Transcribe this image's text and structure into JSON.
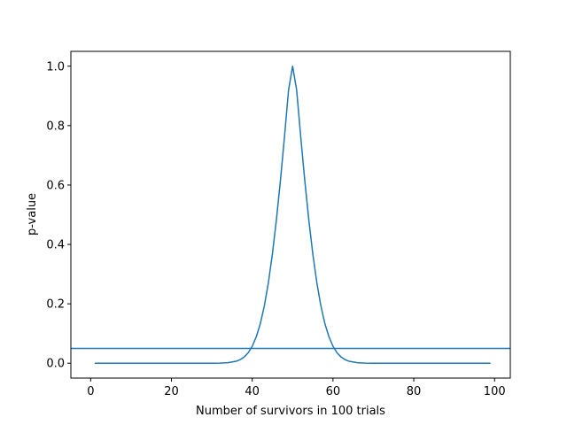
{
  "chart_data": {
    "type": "line",
    "title": "",
    "xlabel": "Number of survivors in 100 trials",
    "ylabel": "p-value",
    "xlim": [
      -4.9,
      103.9
    ],
    "ylim": [
      -0.05,
      1.05
    ],
    "xticks": [
      0,
      20,
      40,
      60,
      80,
      100
    ],
    "xtick_labels": [
      "0",
      "20",
      "40",
      "60",
      "80",
      "100"
    ],
    "yticks": [
      0.0,
      0.2,
      0.4,
      0.6,
      0.8,
      1.0
    ],
    "ytick_labels": [
      "0.0",
      "0.2",
      "0.4",
      "0.6",
      "0.8",
      "1.0"
    ],
    "grid": false,
    "series": [
      {
        "color": "#1f77b4",
        "x": [
          1,
          10,
          20,
          30,
          32,
          34,
          36,
          37,
          38,
          39,
          40,
          41,
          42,
          43,
          44,
          45,
          46,
          47,
          48,
          49,
          50,
          51,
          52,
          53,
          54,
          55,
          56,
          57,
          58,
          59,
          60,
          61,
          62,
          63,
          64,
          66,
          68,
          70,
          80,
          90,
          99
        ],
        "y": [
          0.0,
          0.0,
          0.0,
          0.0001,
          0.0004,
          0.0018,
          0.0066,
          0.012,
          0.021,
          0.035,
          0.057,
          0.089,
          0.133,
          0.193,
          0.271,
          0.368,
          0.484,
          0.617,
          0.764,
          0.92,
          1.0,
          0.92,
          0.764,
          0.617,
          0.484,
          0.368,
          0.271,
          0.193,
          0.133,
          0.089,
          0.057,
          0.035,
          0.021,
          0.012,
          0.0066,
          0.0018,
          0.0004,
          0.0001,
          0.0,
          0.0,
          0.0
        ]
      }
    ],
    "hlines": [
      {
        "y": 0.05,
        "color": "#1f77b4"
      }
    ]
  }
}
